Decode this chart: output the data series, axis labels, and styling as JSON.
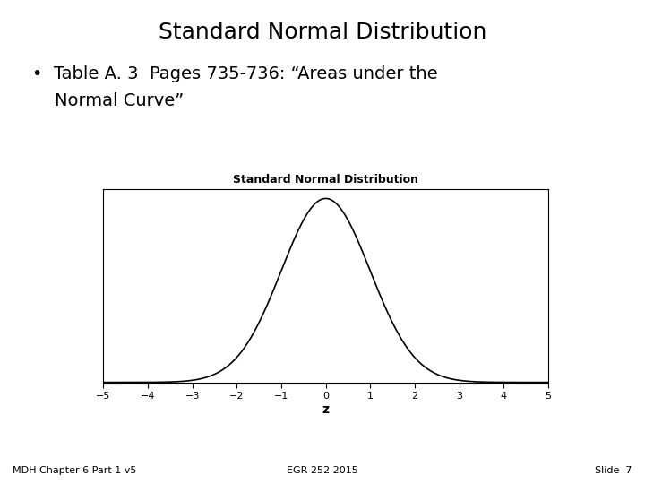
{
  "title": "Standard Normal Distribution",
  "bullet_text_line1": "•  Table A. 3  Pages 735-736: “Areas under the",
  "bullet_text_line2": "    Normal Curve”",
  "plot_title": "Standard Normal Distribution",
  "xlabel": "z",
  "xlim": [
    -5,
    5
  ],
  "xticks": [
    -5,
    -4,
    -3,
    -2,
    -1,
    0,
    1,
    2,
    3,
    4,
    5
  ],
  "footer_left": "MDH Chapter 6 Part 1 v5",
  "footer_center": "EGR 252 2015",
  "footer_right": "Slide  7",
  "bg_color": "#ffffff",
  "curve_color": "#000000",
  "plot_bg": "#ffffff",
  "title_fontsize": 18,
  "bullet_fontsize": 14,
  "plot_title_fontsize": 9,
  "xlabel_fontsize": 10,
  "tick_fontsize": 8,
  "footer_fontsize": 8
}
